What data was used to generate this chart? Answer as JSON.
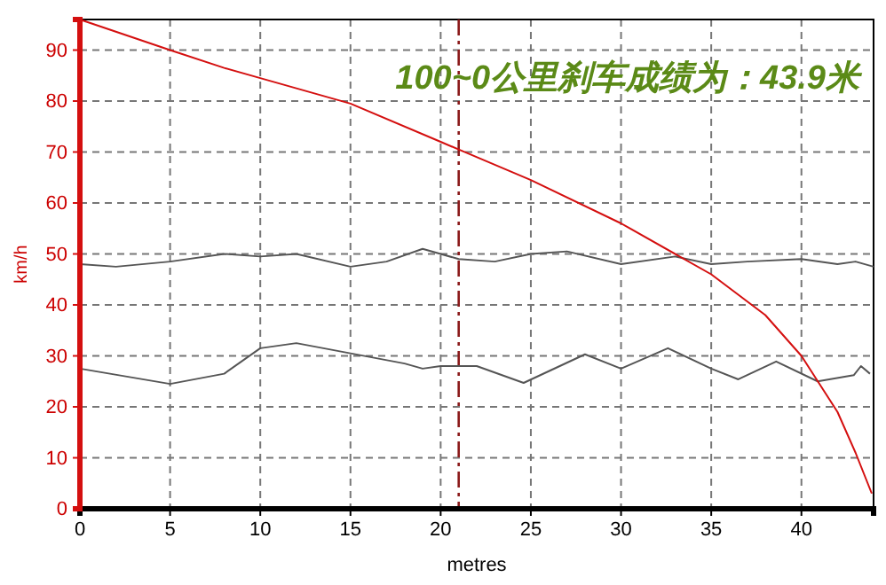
{
  "chart_data": {
    "type": "line",
    "xlabel": "metres",
    "ylabel": "km/h",
    "annotations": [
      "100~0公里刹车成绩为：43.9米"
    ],
    "xlim": [
      0,
      44
    ],
    "ylim": [
      0,
      96
    ],
    "xticks": [
      0,
      5,
      10,
      15,
      20,
      25,
      30,
      35,
      40
    ],
    "yticks": [
      0,
      10,
      20,
      30,
      40,
      50,
      60,
      70,
      80,
      90
    ],
    "grid": true,
    "marker": "none",
    "line_style": "solid",
    "ref_lines": [
      {
        "axis": "x",
        "value": 21,
        "color": "#8b1a1a",
        "line_style": "dashed"
      }
    ],
    "series": [
      {
        "color": "#d40f0f",
        "x": [
          0,
          5,
          8,
          10,
          15,
          20,
          21,
          25,
          30,
          35,
          38,
          40,
          42,
          43,
          43.9
        ],
        "values": [
          96,
          90,
          86.5,
          84.5,
          79.5,
          72,
          70.5,
          64.5,
          56,
          46,
          38,
          30,
          19,
          11,
          3
        ]
      },
      {
        "color": "#555555",
        "x": [
          0,
          2,
          5,
          8,
          10,
          12,
          15,
          17,
          19,
          21,
          23,
          25,
          27,
          30,
          33,
          35,
          37,
          40,
          42,
          43,
          44
        ],
        "values": [
          48,
          47.5,
          48.5,
          50,
          49.5,
          50,
          47.5,
          48.5,
          51,
          49,
          48.5,
          50,
          50.5,
          48,
          49.5,
          48,
          48.5,
          49,
          48,
          48.5,
          47.5
        ]
      },
      {
        "color": "#555555",
        "x": [
          0,
          5,
          8,
          10,
          12,
          15,
          18,
          19,
          20,
          22,
          24.6,
          28,
          30,
          32.6,
          35,
          36.5,
          38.6,
          40.9,
          42.9,
          43.3,
          43.8
        ],
        "values": [
          27.5,
          24.5,
          26.5,
          31.5,
          32.5,
          30.5,
          28.5,
          27.5,
          28,
          28,
          24.7,
          30.3,
          27.5,
          31.5,
          27.5,
          25.4,
          28.9,
          25,
          26.2,
          28,
          26.5
        ]
      }
    ]
  }
}
